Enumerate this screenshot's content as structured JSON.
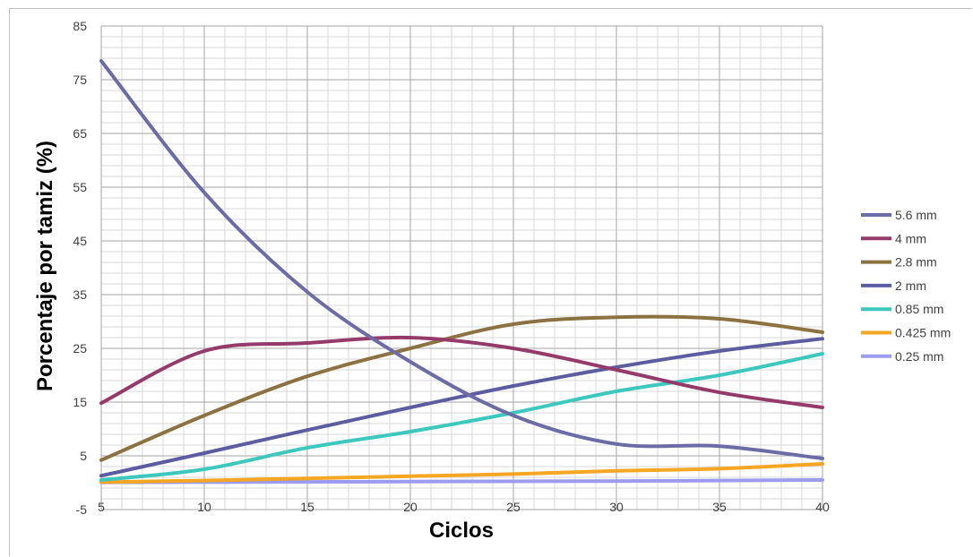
{
  "chart_data": {
    "type": "line",
    "xlabel": "Ciclos",
    "ylabel": "Porcentaje por tamiz (%)",
    "xlim": [
      5,
      40
    ],
    "ylim": [
      -5,
      85
    ],
    "xticks": [
      5,
      10,
      15,
      20,
      25,
      30,
      35,
      40
    ],
    "yticks": [
      -5,
      5,
      15,
      25,
      35,
      45,
      55,
      65,
      75,
      85
    ],
    "grid": true,
    "legend_position": "right",
    "x": [
      5,
      10,
      15,
      20,
      25,
      30,
      35,
      40
    ],
    "series": [
      {
        "name": "5.6 mm",
        "color": "#6b6ba6",
        "values": [
          78.5,
          54,
          35.5,
          22.5,
          12.5,
          7.2,
          6.8,
          4.5
        ]
      },
      {
        "name": "4 mm",
        "color": "#953b6b",
        "values": [
          14.8,
          24.5,
          26,
          27,
          25,
          21,
          16.8,
          14
        ]
      },
      {
        "name": "2.8 mm",
        "color": "#8c7240",
        "values": [
          4.2,
          12.5,
          19.8,
          25,
          29.5,
          30.8,
          30.5,
          28
        ]
      },
      {
        "name": "2 mm",
        "color": "#5c5ca0",
        "values": [
          1.3,
          5.5,
          9.8,
          14,
          18,
          21.5,
          24.5,
          26.8
        ]
      },
      {
        "name": "0.85 mm",
        "color": "#3cc8bd",
        "values": [
          0.5,
          2.5,
          6.5,
          9.5,
          13,
          17,
          20,
          24
        ]
      },
      {
        "name": "0.425 mm",
        "color": "#f5a623",
        "values": [
          0.1,
          0.4,
          0.8,
          1.2,
          1.6,
          2.2,
          2.6,
          3.5
        ]
      },
      {
        "name": "0.25 mm",
        "color": "#9b9bef",
        "values": [
          0.05,
          0.1,
          0.15,
          0.2,
          0.25,
          0.3,
          0.4,
          0.5
        ]
      }
    ]
  }
}
